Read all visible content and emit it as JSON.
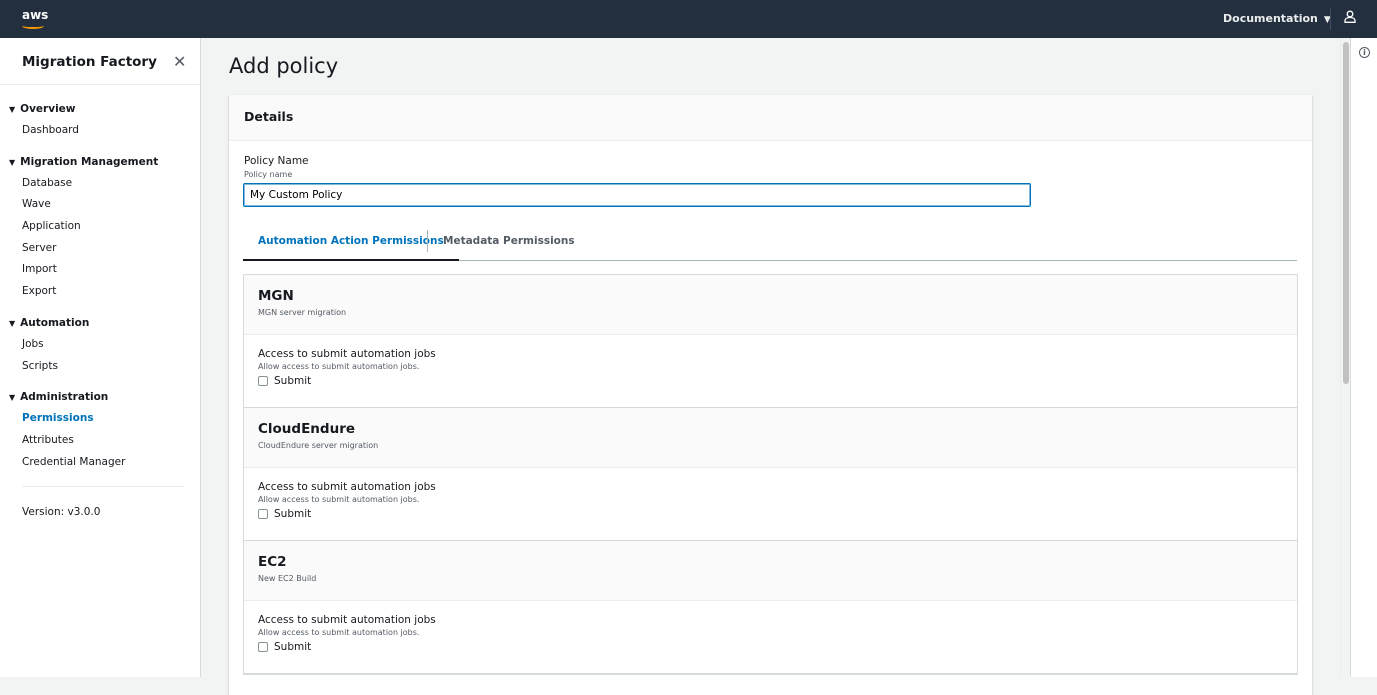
{
  "header": {
    "logo": "aws",
    "documentation": "Documentation",
    "caret": "▼",
    "user_icon": "user-icon"
  },
  "sidebar": {
    "title": "Migration Factory",
    "close": "✕",
    "groups": [
      {
        "label": "Overview",
        "items": [
          "Dashboard"
        ]
      },
      {
        "label": "Migration Management",
        "items": [
          "Database",
          "Wave",
          "Application",
          "Server",
          "Import",
          "Export"
        ]
      },
      {
        "label": "Automation",
        "items": [
          "Jobs",
          "Scripts"
        ]
      },
      {
        "label": "Administration",
        "items": [
          "Permissions",
          "Attributes",
          "Credential Manager"
        ]
      }
    ],
    "active": "Permissions",
    "version": "Version: v3.0.0"
  },
  "page": {
    "title": "Add policy",
    "card_title": "Details",
    "field_label": "Policy Name",
    "field_desc": "Policy name",
    "field_value": "My Custom Policy",
    "tabs": [
      "Automation Action Permissions",
      "Metadata Permissions"
    ],
    "active_tab": "Automation Action Permissions",
    "sections": [
      {
        "name": "MGN",
        "desc": "MGN server migration",
        "perm": "Access to submit automation jobs",
        "perm_desc": "Allow access to submit automation jobs.",
        "checkbox": "Submit",
        "checked": false
      },
      {
        "name": "CloudEndure",
        "desc": "CloudEndure server migration",
        "perm": "Access to submit automation jobs",
        "perm_desc": "Allow access to submit automation jobs.",
        "checkbox": "Submit",
        "checked": false
      },
      {
        "name": "EC2",
        "desc": "New EC2 Build",
        "perm": "Access to submit automation jobs",
        "perm_desc": "Allow access to submit automation jobs.",
        "checkbox": "Submit",
        "checked": false
      }
    ]
  },
  "info": "i",
  "colors": {
    "topbar": "#232f3e",
    "accent": "#0073bb",
    "aws_orange": "#ff9900"
  }
}
